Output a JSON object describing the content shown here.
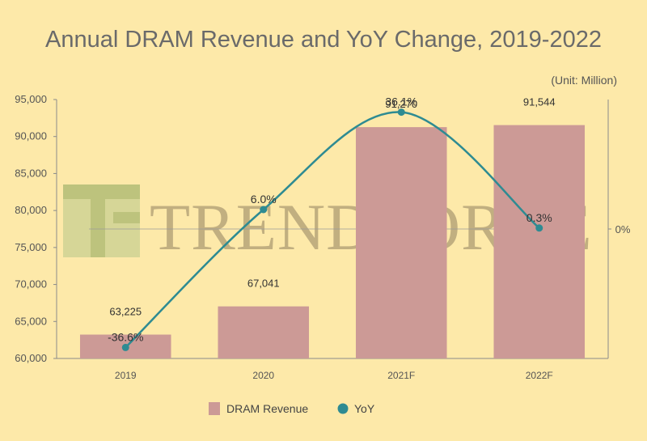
{
  "chart_data": {
    "type": "bar",
    "title": "Annual DRAM Revenue and YoY Change, 2019-2022",
    "unit_note": "(Unit: Million)",
    "categories": [
      "2019",
      "2020",
      "2021F",
      "2022F"
    ],
    "series": [
      {
        "name": "DRAM Revenue",
        "type": "bar",
        "values": [
          63225,
          67041,
          91270,
          91544
        ],
        "labels": [
          "63,225",
          "67,041",
          "91,270",
          "91,544"
        ],
        "color": "#cc9a96"
      },
      {
        "name": "YoY",
        "type": "line",
        "values": [
          -36.6,
          6.0,
          36.1,
          0.3
        ],
        "labels": [
          "-36.6%",
          "6.0%",
          "36.1%",
          "0.3%"
        ],
        "color": "#2e8b92"
      }
    ],
    "ylim": [
      60000,
      95000
    ],
    "yticks": [
      60000,
      65000,
      70000,
      75000,
      80000,
      85000,
      90000,
      95000
    ],
    "ytick_labels": [
      "60,000",
      "65,000",
      "70,000",
      "75,000",
      "80,000",
      "85,000",
      "90,000",
      "95,000"
    ],
    "y2lim": [
      -40,
      40
    ],
    "y2_zero_label": "0%",
    "legend": "bottom",
    "grid": false,
    "watermark": "TRENDFORCE"
  }
}
